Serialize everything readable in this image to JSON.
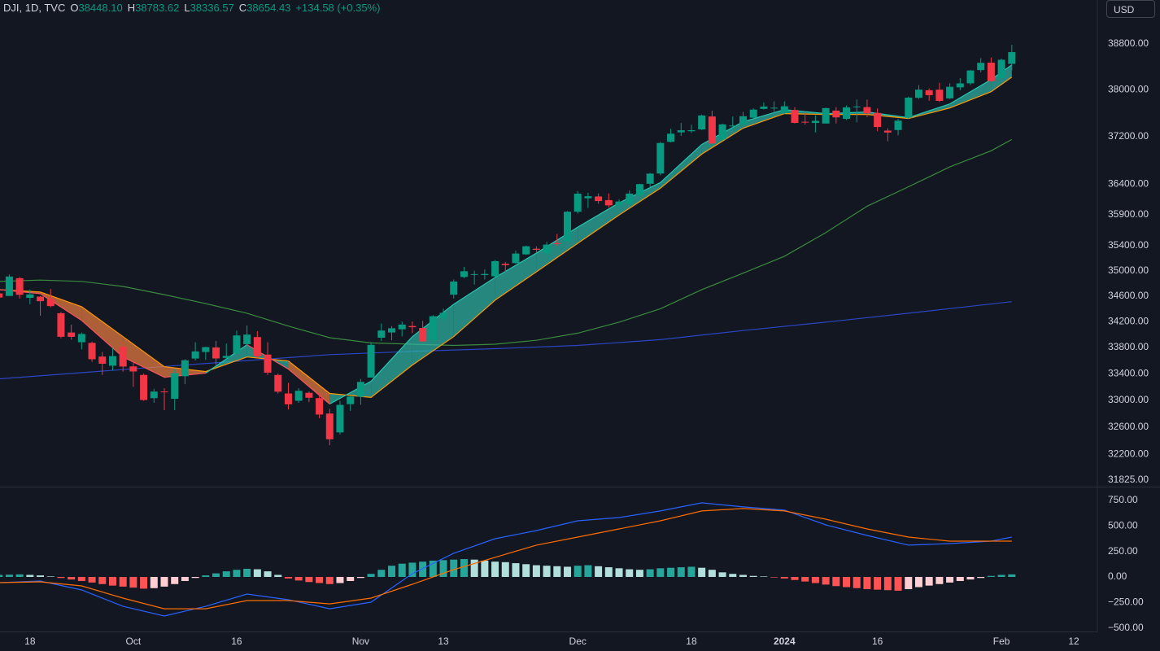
{
  "header": {
    "symbol": "DJI, 1D, TVC",
    "ohlc": [
      {
        "label": "O",
        "value": "38448.10"
      },
      {
        "label": "H",
        "value": "38783.62"
      },
      {
        "label": "L",
        "value": "38336.57"
      },
      {
        "label": "C",
        "value": "38654.43"
      }
    ],
    "change": "+134.58 (+0.35%)",
    "currency": "USD"
  },
  "chart_data": [
    {
      "type": "candlestick",
      "log": true,
      "xlim": [
        0.1,
        106.2
      ],
      "ylim": [
        31740,
        39260
      ],
      "xticks": [
        {
          "value": 3,
          "label": "18"
        },
        {
          "value": 13,
          "label": "Oct"
        },
        {
          "value": 23,
          "label": "16"
        },
        {
          "value": 35,
          "label": "Nov"
        },
        {
          "value": 43,
          "label": "13"
        },
        {
          "value": 56,
          "label": "Dec"
        },
        {
          "value": 67,
          "label": "18"
        },
        {
          "value": 76,
          "label": "2024"
        },
        {
          "value": 85,
          "label": "16"
        },
        {
          "value": 97,
          "label": "Feb"
        },
        {
          "value": 104,
          "label": "12"
        }
      ],
      "yticks": [
        {
          "value": 38800,
          "label": "38800.00"
        },
        {
          "value": 38000,
          "label": "38000.00"
        },
        {
          "value": 37200,
          "label": "37200.00"
        },
        {
          "value": 36400,
          "label": "36400.00"
        },
        {
          "value": 35900,
          "label": "35900.00"
        },
        {
          "value": 35400,
          "label": "35400.00"
        },
        {
          "value": 35000,
          "label": "35000.00"
        },
        {
          "value": 34600,
          "label": "34600.00"
        },
        {
          "value": 34200,
          "label": "34200.00"
        },
        {
          "value": 33800,
          "label": "33800.00"
        },
        {
          "value": 33400,
          "label": "33400.00"
        },
        {
          "value": 33000,
          "label": "33000.00"
        },
        {
          "value": 32600,
          "label": "32600.00"
        },
        {
          "value": 32200,
          "label": "32200.00"
        },
        {
          "value": 31825,
          "label": "31825.00"
        }
      ],
      "up_color": "#089981",
      "down_color": "#f23645",
      "open": [
        34640,
        34600,
        34880,
        34570,
        34590,
        34550,
        34330,
        34030,
        33880,
        33870,
        33660,
        33520,
        33810,
        33510,
        33380,
        33030,
        33130,
        33020,
        33360,
        33630,
        33730,
        33800,
        33640,
        33710,
        33850,
        33960,
        33690,
        33380,
        33100,
        32990,
        33110,
        33030,
        32800,
        32520,
        32940,
        33050,
        33340,
        33950,
        34030,
        34080,
        34130,
        34100,
        33910,
        34250,
        34620,
        34900,
        34940,
        34930,
        34910,
        35110,
        35120,
        35260,
        35350,
        35280,
        35440,
        35470,
        35950,
        36170,
        36200,
        36140,
        36060,
        36080,
        36220,
        36410,
        36580,
        37110,
        37270,
        37290,
        37320,
        37540,
        37150,
        37380,
        37400,
        37520,
        37670,
        37690,
        37600,
        37650,
        37450,
        37430,
        37420,
        37640,
        37500,
        37700,
        37700,
        37600,
        37300,
        37310,
        37520,
        37860,
        37990,
        38000,
        37850,
        38040,
        38110,
        38340,
        38470,
        38200,
        38448.1
      ],
      "high": [
        34700,
        34940,
        34900,
        34700,
        34600,
        34710,
        34350,
        34150,
        34030,
        33890,
        33730,
        33790,
        33890,
        33570,
        33400,
        33170,
        33180,
        33470,
        33620,
        33880,
        33810,
        33900,
        33860,
        34060,
        34140,
        34050,
        33880,
        33400,
        33260,
        33180,
        33130,
        33110,
        32870,
        32990,
        33060,
        33320,
        33880,
        34170,
        34130,
        34200,
        34200,
        34210,
        34300,
        34400,
        34860,
        35060,
        35000,
        35020,
        35170,
        35140,
        35320,
        35400,
        35390,
        35460,
        35590,
        35960,
        36290,
        36260,
        36250,
        36250,
        36150,
        36300,
        36410,
        36590,
        37110,
        37330,
        37430,
        37400,
        37570,
        37640,
        37420,
        37540,
        37620,
        37680,
        37780,
        37800,
        37800,
        37700,
        37630,
        37560,
        37690,
        37700,
        37730,
        37830,
        37830,
        37680,
        37340,
        37500,
        37880,
        38080,
        38020,
        38120,
        38110,
        38200,
        38340,
        38550,
        38560,
        38540,
        38783.62
      ],
      "low": [
        34500,
        34600,
        34560,
        34470,
        34290,
        34420,
        33940,
        33920,
        33770,
        33580,
        33380,
        33450,
        33430,
        33200,
        32990,
        32960,
        32850,
        32850,
        33240,
        33600,
        33610,
        33530,
        33590,
        33700,
        33780,
        33640,
        33380,
        33100,
        32860,
        32960,
        32970,
        32730,
        32330,
        32490,
        32840,
        32930,
        33340,
        33900,
        33910,
        33970,
        34020,
        33870,
        33870,
        34180,
        34560,
        34880,
        34780,
        34860,
        34880,
        34980,
        35110,
        35250,
        35290,
        35250,
        35400,
        35400,
        35920,
        36010,
        36080,
        36020,
        36000,
        36030,
        36200,
        36350,
        36550,
        37100,
        37210,
        37260,
        37310,
        37080,
        37130,
        37310,
        37390,
        37500,
        37660,
        37560,
        37580,
        37420,
        37400,
        37270,
        37420,
        37420,
        37480,
        37440,
        37530,
        37290,
        37120,
        37220,
        37500,
        37840,
        37810,
        37790,
        37840,
        37990,
        38080,
        38300,
        38140,
        38200,
        38336.57
      ],
      "close": [
        34575,
        34907,
        34618,
        34625,
        34518,
        34441,
        33964,
        33963,
        34007,
        33619,
        33551,
        33667,
        33508,
        33433,
        33002,
        33129,
        33120,
        33407,
        33604,
        33739,
        33805,
        33631,
        33670,
        33985,
        33998,
        33665,
        33415,
        33127,
        32937,
        33141,
        33036,
        32785,
        32418,
        32929,
        33053,
        33275,
        33839,
        34061,
        34096,
        34153,
        34112,
        33892,
        34283,
        34337,
        34828,
        34991,
        34945,
        34947,
        35151,
        35088,
        35273,
        35390,
        35333,
        35417,
        35430,
        35951,
        36246,
        36204,
        36125,
        36054,
        36117,
        36248,
        36404,
        36578,
        37090,
        37248,
        37306,
        37307,
        37558,
        37083,
        37405,
        37386,
        37545,
        37657,
        37710,
        37690,
        37715,
        37431,
        37440,
        37466,
        37683,
        37525,
        37696,
        37711,
        37593,
        37361,
        37267,
        37469,
        37863,
        38001,
        37906,
        37807,
        38050,
        38109,
        38333,
        38467,
        38150,
        38520,
        38654.43
      ],
      "series": [
        {
          "color": "#2a46c2",
          "x": [
            0,
            16,
            32,
            40,
            48,
            56,
            64,
            72,
            80,
            88,
            98
          ],
          "values": [
            33320,
            33510,
            33690,
            33740,
            33780,
            33830,
            33920,
            34060,
            34190,
            34330,
            34510
          ]
        },
        {
          "color": "#3a8a3e",
          "x": [
            0,
            4,
            8,
            12,
            16,
            20,
            24,
            28,
            32,
            36,
            40,
            44,
            48,
            52,
            56,
            60,
            64,
            68,
            72,
            76,
            80,
            84,
            88,
            92,
            96,
            98
          ],
          "values": [
            34830,
            34850,
            34830,
            34750,
            34620,
            34480,
            34330,
            34130,
            33950,
            33870,
            33850,
            33830,
            33850,
            33910,
            34020,
            34190,
            34400,
            34700,
            34960,
            35230,
            35610,
            36040,
            36360,
            36690,
            36960,
            37150
          ]
        }
      ],
      "ribbon": {
        "x": [
          0,
          4,
          8,
          12,
          16,
          20,
          24,
          28,
          32,
          36,
          40,
          44,
          48,
          52,
          56,
          60,
          64,
          68,
          72,
          76,
          80,
          84,
          88,
          92,
          96,
          98
        ],
        "fast": [
          34700,
          34636,
          34217,
          33654,
          33345,
          33407,
          33841,
          33469,
          32942,
          33284,
          33966,
          34470,
          34892,
          35280,
          35699,
          36096,
          36430,
          37066,
          37451,
          37658,
          37589,
          37617,
          37520,
          37756,
          38176,
          38430
        ],
        "slow": [
          34700,
          34662,
          34432,
          33966,
          33506,
          33432,
          33654,
          33592,
          33101,
          33040,
          33531,
          33966,
          34534,
          34982,
          35437,
          35897,
          36336,
          36903,
          37341,
          37589,
          37575,
          37575,
          37506,
          37686,
          37965,
          38218
        ],
        "up_color": "#26c6b0",
        "down_color": "#f7525f",
        "slow_color": "#ff9800",
        "up_fill": "#2fb8a6",
        "down_fill": "#f08040"
      }
    },
    {
      "type": "macd",
      "ylim": [
        -535,
        870
      ],
      "yticks": [
        {
          "value": 750,
          "label": "750.00"
        },
        {
          "value": 500,
          "label": "500.00"
        },
        {
          "value": 250,
          "label": "250.00"
        },
        {
          "value": 0,
          "label": "0.00"
        },
        {
          "value": -250,
          "label": "−250.00"
        },
        {
          "value": -500,
          "label": "−500.00"
        }
      ],
      "histogram": [
        20,
        22,
        25,
        20,
        15,
        5,
        -10,
        -25,
        -40,
        -55,
        -70,
        -85,
        -95,
        -105,
        -115,
        -110,
        -95,
        -70,
        -40,
        -10,
        15,
        35,
        55,
        70,
        80,
        75,
        55,
        20,
        -15,
        -35,
        -50,
        -60,
        -70,
        -60,
        -40,
        -10,
        30,
        70,
        110,
        130,
        140,
        150,
        160,
        165,
        170,
        175,
        170,
        160,
        150,
        145,
        135,
        125,
        115,
        110,
        105,
        100,
        110,
        115,
        105,
        95,
        85,
        75,
        70,
        75,
        85,
        90,
        95,
        100,
        90,
        70,
        45,
        30,
        20,
        10,
        5,
        -5,
        -15,
        -30,
        -45,
        -60,
        -75,
        -90,
        -100,
        -110,
        -120,
        -125,
        -130,
        -135,
        -120,
        -100,
        -85,
        -70,
        -55,
        -40,
        -25,
        -10,
        10,
        20,
        25
      ],
      "hist_colors": [
        "#26a69a",
        "#b2dfdb",
        "#ffcdd2",
        "#ff5252"
      ],
      "series": [
        {
          "color": "#2962ff",
          "x": [
            0,
            4,
            8,
            12,
            16,
            20,
            24,
            28,
            32,
            36,
            40,
            44,
            48,
            52,
            56,
            60,
            64,
            68,
            72,
            76,
            80,
            84,
            88,
            92,
            96,
            98
          ],
          "values": [
            -56,
            -40,
            -128,
            -288,
            -383,
            -288,
            -168,
            -224,
            -312,
            -248,
            32,
            232,
            375,
            455,
            551,
            583,
            647,
            727,
            687,
            655,
            511,
            407,
            312,
            327,
            351,
            391
          ]
        },
        {
          "color": "#ff6d00",
          "x": [
            0,
            4,
            8,
            12,
            16,
            20,
            24,
            28,
            32,
            36,
            40,
            44,
            48,
            52,
            56,
            60,
            64,
            68,
            72,
            76,
            80,
            84,
            88,
            92,
            96,
            98
          ],
          "values": [
            -56,
            -48,
            -88,
            -208,
            -312,
            -312,
            -232,
            -232,
            -264,
            -208,
            -72,
            72,
            192,
            312,
            391,
            471,
            551,
            647,
            671,
            647,
            567,
            471,
            391,
            351,
            351,
            351
          ]
        }
      ]
    }
  ]
}
